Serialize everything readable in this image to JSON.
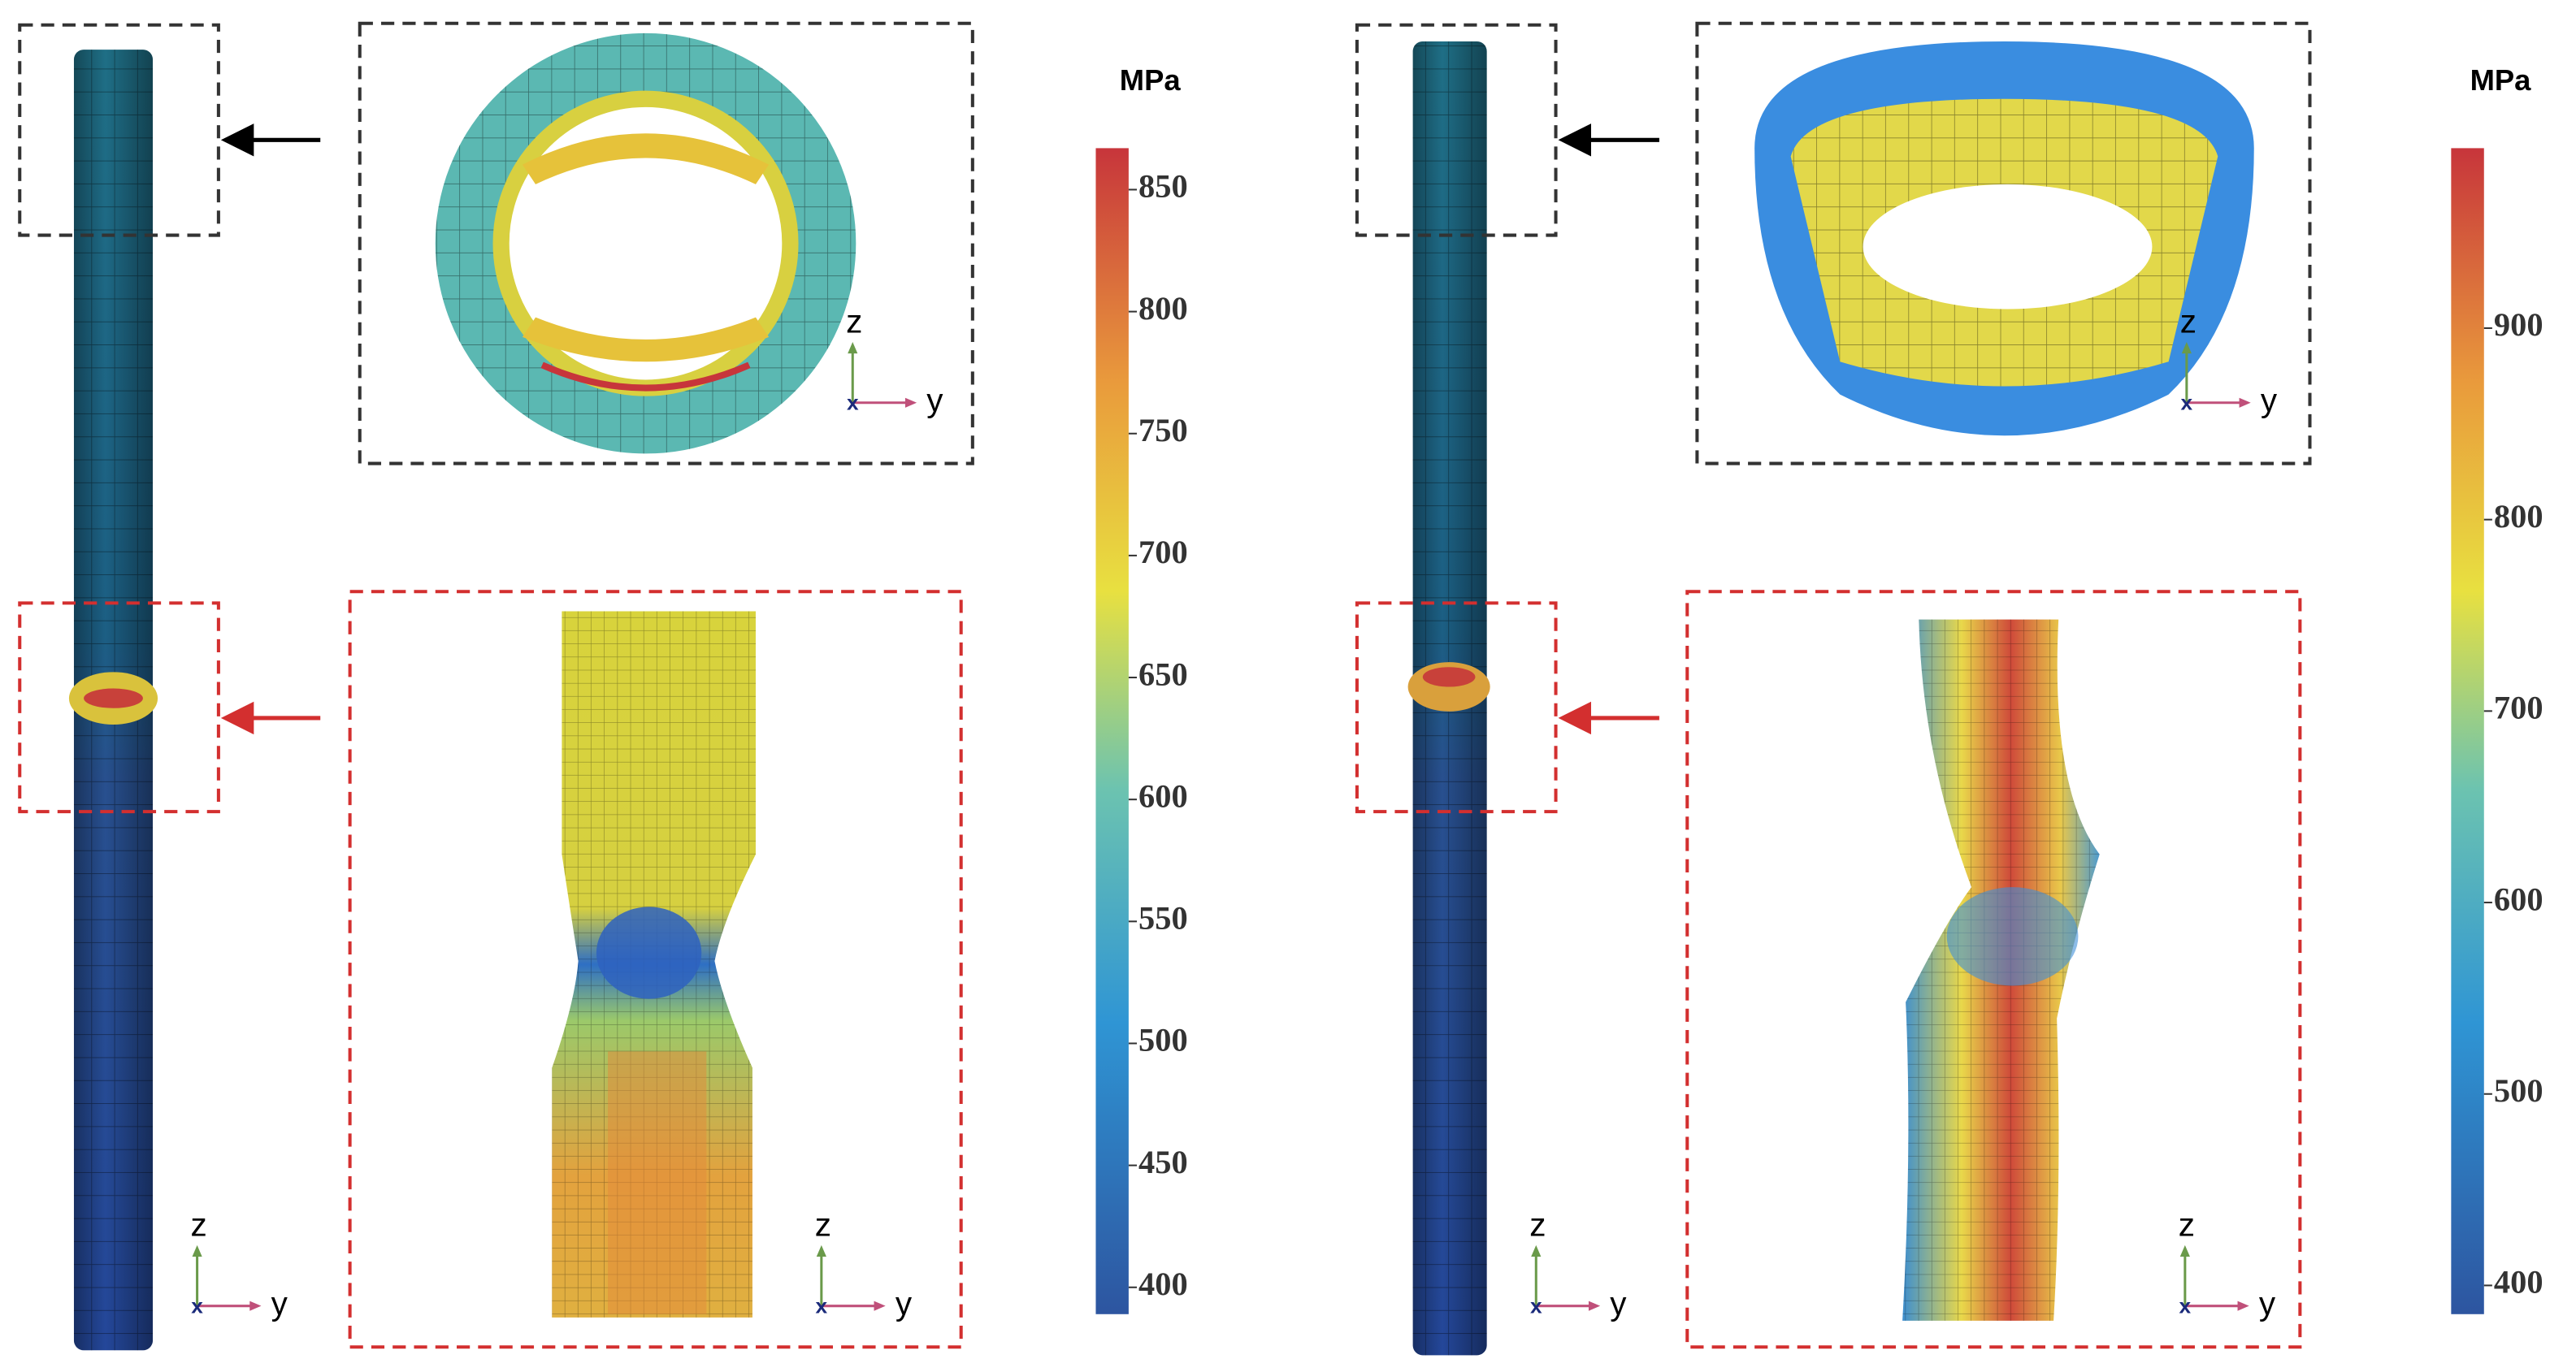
{
  "panels": [
    {
      "colorbar": {
        "title": "MPa",
        "lim": [
          389,
          867
        ],
        "ticks": [
          400,
          450,
          500,
          550,
          600,
          650,
          700,
          750,
          800,
          850
        ]
      }
    },
    {
      "colorbar": {
        "title": "MPa",
        "lim": [
          385,
          994
        ],
        "ticks": [
          400,
          500,
          600,
          700,
          800,
          900
        ]
      }
    }
  ],
  "triad": {
    "up": "z",
    "right": "y",
    "out": "x"
  }
}
